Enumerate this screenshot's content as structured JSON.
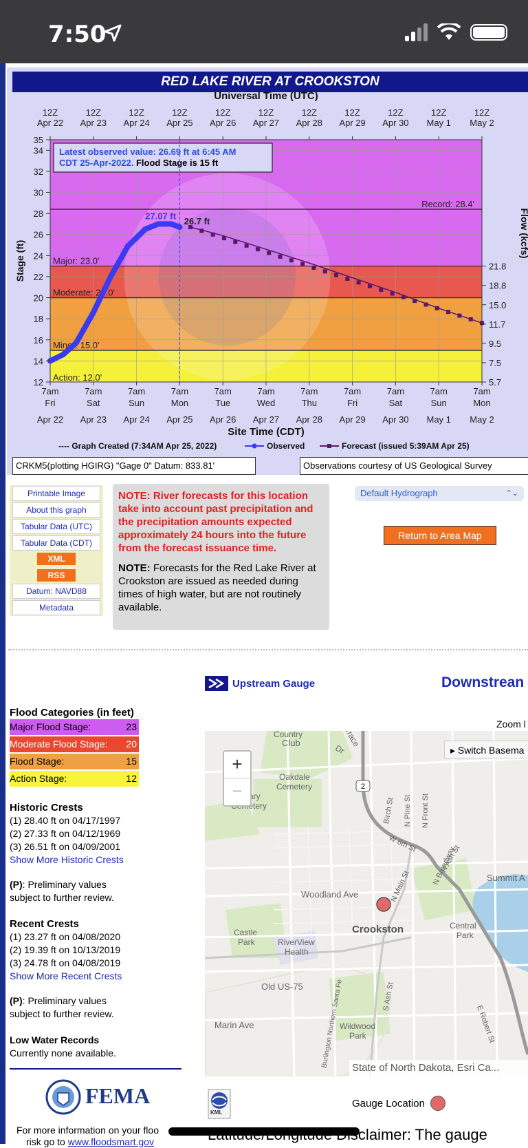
{
  "status_bar": {
    "time": "7:50"
  },
  "hydrograph": {
    "title": "RED LAKE RIVER AT CROOKSTON",
    "utc_label": "Universal Time (UTC)",
    "utc_ticks": [
      [
        "12Z",
        "Apr 22"
      ],
      [
        "12Z",
        "Apr 23"
      ],
      [
        "12Z",
        "Apr 24"
      ],
      [
        "12Z",
        "Apr 25"
      ],
      [
        "12Z",
        "Apr 26"
      ],
      [
        "12Z",
        "Apr 27"
      ],
      [
        "12Z",
        "Apr 28"
      ],
      [
        "12Z",
        "Apr 29"
      ],
      [
        "12Z",
        "Apr 30"
      ],
      [
        "12Z",
        "May 1"
      ],
      [
        "12Z",
        "May 2"
      ]
    ],
    "cdt_ticks": [
      [
        "7am",
        "Fri",
        "Apr 22"
      ],
      [
        "7am",
        "Sat",
        "Apr 23"
      ],
      [
        "7am",
        "Sun",
        "Apr 24"
      ],
      [
        "7am",
        "Mon",
        "Apr 25"
      ],
      [
        "7am",
        "Tue",
        "Apr 26"
      ],
      [
        "7am",
        "Wed",
        "Apr 27"
      ],
      [
        "7am",
        "Thu",
        "Apr 28"
      ],
      [
        "7am",
        "Fri",
        "Apr 29"
      ],
      [
        "7am",
        "Sat",
        "Apr 30"
      ],
      [
        "7am",
        "Sun",
        "May 1"
      ],
      [
        "7am",
        "Mon",
        "May 2"
      ]
    ],
    "site_time_label": "Site Time (CDT)",
    "y_label": "Stage (ft)",
    "y2_label": "Flow (kcfs)",
    "y_ticks": [
      "35",
      "34",
      "32",
      "30",
      "28",
      "26",
      "24",
      "22",
      "20",
      "18",
      "16",
      "14",
      "12"
    ],
    "flow_ticks": [
      "21.8",
      "18.8",
      "15.0",
      "11.7",
      "9.5",
      "7.5",
      "5.7"
    ],
    "latest_line1": "Latest observed value: 26.69 ft at 6:45 AM",
    "latest_line2a": "CDT 25-Apr-2022.",
    "latest_line2b": " Flood Stage is 15 ft",
    "record_label": "Record: 28.4'",
    "major_label": "Major: 23.0'",
    "moderate_label": "Moderate: 20.0'",
    "minor_label": "Minor: 15.0'",
    "action_label": "Action: 12.0'",
    "peak_obs_label": "27.07 ft",
    "peak_fc_label": "26.7 ft",
    "legend_created": "---- Graph Created (7:34AM Apr 25, 2022)",
    "legend_observed": "Observed",
    "legend_forecast": "Forecast (issued 5:39AM Apr 25)",
    "datum_info": "CRKM5(plotting HGIRG) \"Gage 0\" Datum: 833.81'",
    "courtesy": "Observations courtesy of US Geological Survey",
    "colors": {
      "major": "#d86af0",
      "moderate": "#e8584e",
      "flood": "#f0a040",
      "action": "#f5f03a",
      "observed": "#3a3af0",
      "forecast": "#5a1868"
    },
    "chart_data": {
      "type": "line",
      "xlabel": "Site Time (CDT)",
      "ylabel": "Stage (ft)",
      "ylim": [
        12,
        35
      ],
      "x_unit": "days from Apr 22 7am CDT",
      "series": [
        {
          "name": "Observed",
          "x": [
            0,
            0.3,
            0.6,
            1.0,
            1.4,
            1.8,
            2.2,
            2.5,
            2.8,
            3.0
          ],
          "y": [
            14.0,
            14.6,
            15.7,
            18.6,
            22.0,
            24.9,
            26.5,
            27.0,
            27.0,
            26.7
          ]
        },
        {
          "name": "Forecast",
          "x": [
            3.25,
            4.0,
            5.0,
            6.0,
            7.0,
            8.0,
            9.0,
            10.0,
            10.0
          ],
          "y": [
            26.7,
            25.9,
            24.6,
            23.3,
            21.9,
            20.5,
            19.0,
            17.6,
            17.6
          ]
        }
      ]
    }
  },
  "links": [
    "Printable Image",
    "About this graph",
    "Tabular Data (UTC)",
    "Tabular Data (CDT)"
  ],
  "xml_label": "XML",
  "rss_label": "RSS",
  "datum_link": "Datum: NAVD88",
  "metadata_link": "Metadata",
  "note1_bold": "NOTE: River forecasts for this location take into account past precipitation and the precipitation amounts expected approximately 24 hours into the future from the forecast issuance time.",
  "note2_bold": "NOTE:",
  "note2_text": " Forecasts for the Red Lake River at Crookston are issued as needed during times of high water, but are not routinely available.",
  "select_value": "Default Hydrograph",
  "return_btn": "Return to Area Map",
  "upstream": "Upstream Gauge",
  "downstream": "Downstrean",
  "flood_categories": {
    "title": "Flood Categories (in feet)",
    "rows": [
      {
        "label": "Major Flood Stage:",
        "value": "23",
        "color": "#cf5cf0",
        "text": "#000000"
      },
      {
        "label": "Moderate Flood Stage:",
        "value": "20",
        "color": "#e8482e",
        "text": "#ffffff"
      },
      {
        "label": "Flood Stage:",
        "value": "15",
        "color": "#f0a040",
        "text": "#000000"
      },
      {
        "label": "Action Stage:",
        "value": "12",
        "color": "#f8f43a",
        "text": "#000000"
      }
    ]
  },
  "historic": {
    "title": "Historic Crests",
    "items": [
      "(1) 28.40 ft on 04/17/1997",
      "(2) 27.33 ft on 04/12/1969",
      "(3) 26.51 ft on 04/09/2001"
    ],
    "more": "Show More Historic Crests"
  },
  "prelim": {
    "p": "(P)",
    "line1": ": Preliminary values",
    "line2": "subject to further review."
  },
  "recent": {
    "title": "Recent Crests",
    "items": [
      "(1) 23.27 ft on 04/08/2020",
      "(2) 19.39 ft on 10/13/2019",
      "(3) 24.78 ft on 04/08/2019"
    ],
    "more": "Show More Recent Crests"
  },
  "low_water": {
    "title": "Low Water Records",
    "text": "Currently none available."
  },
  "fema": {
    "logo": "FEMA",
    "info": "For more information on your floo",
    "info2": "risk go to ",
    "link": "www.floodsmart.gov"
  },
  "map": {
    "zoom": "Zoom l",
    "switch": "▸ Switch Basema",
    "attribution": "State of North Dakota, Esri Ca...",
    "labels": [
      "Country",
      "Club",
      "Oakdale",
      "Cemetery",
      "Calvary",
      "Cemetery",
      "Woodland Ave",
      "Crookston",
      "Central",
      "Park",
      "Castle",
      "Park",
      "RiverView",
      "Health",
      "Old US-75",
      "Marin Ave",
      "Wildwood",
      "Park",
      "Summit A",
      "W 6th St",
      "Birch St",
      "N Pine St",
      "N Front St",
      "N Broadway",
      "N Main St",
      "N Ash St",
      "S Ash St",
      "E Robert St",
      "Dr",
      "errace",
      "Burlington Northern Santa Fe",
      "2"
    ]
  },
  "gauge_location": "Gauge Location",
  "kml": "KML",
  "footer_text": "Latitude/Longitude Disclaimer: The gauge"
}
